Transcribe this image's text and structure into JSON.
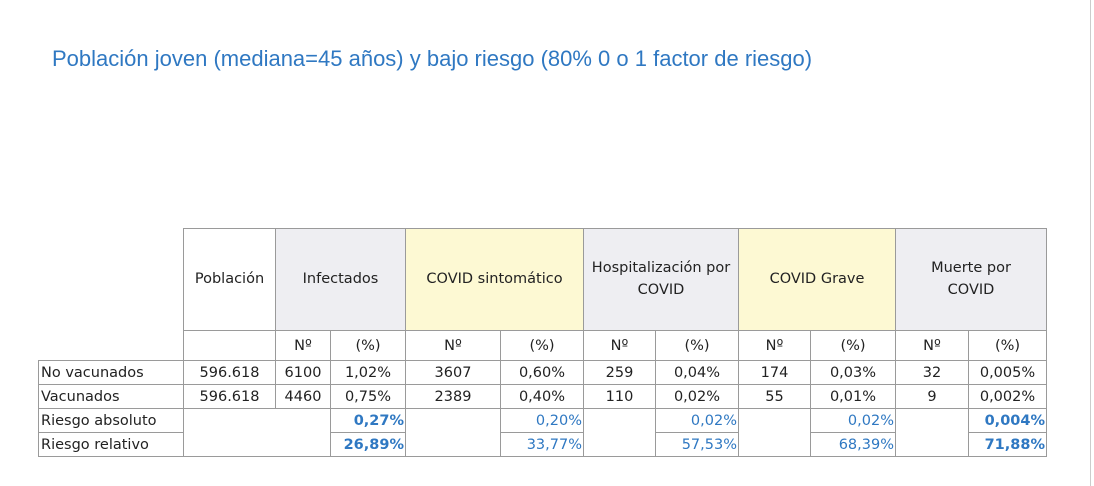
{
  "title": "Población joven (mediana=45 años) y bajo riesgo (80% 0 o 1 factor de riesgo)",
  "colors": {
    "title": "#2f78c2",
    "grey_header": "#eeeef2",
    "yellow_header": "#fdf9d3",
    "highlight_values": "#2f78c2"
  },
  "table": {
    "headers": [
      "Población",
      "Infectados",
      "COVID sintomático",
      "Hospitalización por COVID",
      "COVID Grave",
      "Muerte por COVID"
    ],
    "sub_no": "Nº",
    "sub_pct": "(%)",
    "rows": [
      {
        "label": "No vacunados",
        "poblacion": "596.618",
        "values": [
          "6100",
          "1,02%",
          "3607",
          "0,60%",
          "259",
          "0,04%",
          "174",
          "0,03%",
          "32",
          "0,005%"
        ]
      },
      {
        "label": "Vacunados",
        "poblacion": "596.618",
        "values": [
          "4460",
          "0,75%",
          "2389",
          "0,40%",
          "110",
          "0,02%",
          "55",
          "0,01%",
          "9",
          "0,002%"
        ]
      }
    ],
    "riesgo_absoluto": {
      "label": "Riesgo absoluto",
      "values": [
        "0,27%",
        "0,20%",
        "0,02%",
        "0,02%",
        "0,004%"
      ]
    },
    "riesgo_relativo": {
      "label": "Riesgo relativo",
      "values": [
        "26,89%",
        "33,77%",
        "57,53%",
        "68,39%",
        "71,88%"
      ]
    }
  }
}
